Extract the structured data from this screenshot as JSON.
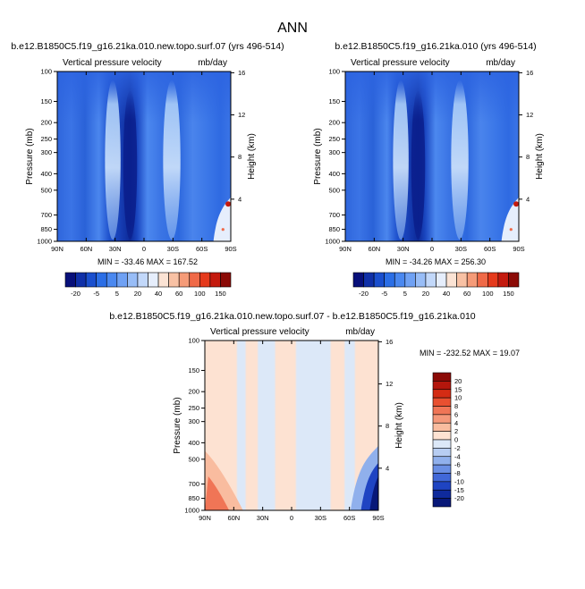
{
  "figure_title": "ANN",
  "chart_data": [
    {
      "type": "heatmap",
      "title": "b.e12.B1850C5.f19_g16.21ka.010.new.topo.surf.07 (yrs 496-514)",
      "subtitle_left": "Vertical pressure velocity",
      "subtitle_right": "mb/day",
      "ylabel": "Pressure (mb)",
      "ylabel_right": "Height (km)",
      "x_ticks": [
        "90N",
        "60N",
        "30N",
        "0",
        "30S",
        "60S",
        "90S"
      ],
      "x_range": [
        90,
        -90
      ],
      "y_ticks": [
        "100",
        "150",
        "200",
        "250",
        "300",
        "400",
        "500",
        "700",
        "850",
        "1000"
      ],
      "y_range": [
        100,
        1000
      ],
      "y_scale": "log",
      "y_ticks_right": [
        "16",
        "12",
        "8",
        "4"
      ],
      "stats_text": "MIN = -33.46   MAX = 167.52",
      "min": -33.46,
      "max": 167.52,
      "colorbar": {
        "labels": [
          "-20",
          "-5",
          "5",
          "20",
          "40",
          "60",
          "100",
          "150"
        ],
        "colors": [
          "#08107a",
          "#1030a8",
          "#1a4fce",
          "#2b6ee6",
          "#4a88f0",
          "#6fa1f4",
          "#98bdf7",
          "#c2d8fa",
          "#e6eefc",
          "#fbe3d4",
          "#f8c1a4",
          "#f59b78",
          "#f06a48",
          "#e53a1c",
          "#c41a0e",
          "#8b0a06"
        ]
      }
    },
    {
      "type": "heatmap",
      "title": "b.e12.B1850C5.f19_g16.21ka.010 (yrs 496-514)",
      "subtitle_left": "Vertical pressure velocity",
      "subtitle_right": "mb/day",
      "ylabel": "Pressure (mb)",
      "ylabel_right": "Height (km)",
      "x_ticks": [
        "90N",
        "60N",
        "30N",
        "0",
        "30S",
        "60S",
        "90S"
      ],
      "x_range": [
        90,
        -90
      ],
      "y_ticks": [
        "100",
        "150",
        "200",
        "250",
        "300",
        "400",
        "500",
        "700",
        "850",
        "1000"
      ],
      "y_range": [
        100,
        1000
      ],
      "y_scale": "log",
      "y_ticks_right": [
        "16",
        "12",
        "8",
        "4"
      ],
      "stats_text": "MIN = -34.26   MAX = 256.30",
      "min": -34.26,
      "max": 256.3,
      "colorbar": {
        "labels": [
          "-20",
          "-5",
          "5",
          "20",
          "40",
          "60",
          "100",
          "150"
        ],
        "colors": [
          "#08107a",
          "#1030a8",
          "#1a4fce",
          "#2b6ee6",
          "#4a88f0",
          "#6fa1f4",
          "#98bdf7",
          "#c2d8fa",
          "#e6eefc",
          "#fbe3d4",
          "#f8c1a4",
          "#f59b78",
          "#f06a48",
          "#e53a1c",
          "#c41a0e",
          "#8b0a06"
        ]
      }
    },
    {
      "type": "heatmap",
      "title": "b.e12.B1850C5.f19_g16.21ka.010.new.topo.surf.07 - b.e12.B1850C5.f19_g16.21ka.010",
      "subtitle_left": "Vertical pressure velocity",
      "subtitle_right": "mb/day",
      "ylabel": "Pressure (mb)",
      "ylabel_right": "Height (km)",
      "x_ticks": [
        "90N",
        "60N",
        "30N",
        "0",
        "30S",
        "60S",
        "90S"
      ],
      "x_range": [
        90,
        -90
      ],
      "y_ticks": [
        "100",
        "150",
        "200",
        "250",
        "300",
        "400",
        "500",
        "700",
        "850",
        "1000"
      ],
      "y_range": [
        100,
        1000
      ],
      "y_scale": "log",
      "y_ticks_right": [
        "16",
        "12",
        "8",
        "4"
      ],
      "stats_text": "MIN = -232.52   MAX =  19.07",
      "min": -232.52,
      "max": 19.07,
      "colorbar": {
        "labels": [
          "20",
          "15",
          "10",
          "8",
          "6",
          "4",
          "2",
          "0",
          "-2",
          "-4",
          "-6",
          "-8",
          "-10",
          "-15",
          "-20"
        ],
        "colors": [
          "#8b0a06",
          "#b4160c",
          "#d42c14",
          "#e85030",
          "#f07556",
          "#f5987a",
          "#f9bc9f",
          "#fde2d2",
          "#dce8f8",
          "#b7cdf2",
          "#90b0ec",
          "#6a8fe4",
          "#4168d8",
          "#1f44c2",
          "#0f2a9c",
          "#081878"
        ]
      }
    }
  ],
  "icons": {}
}
